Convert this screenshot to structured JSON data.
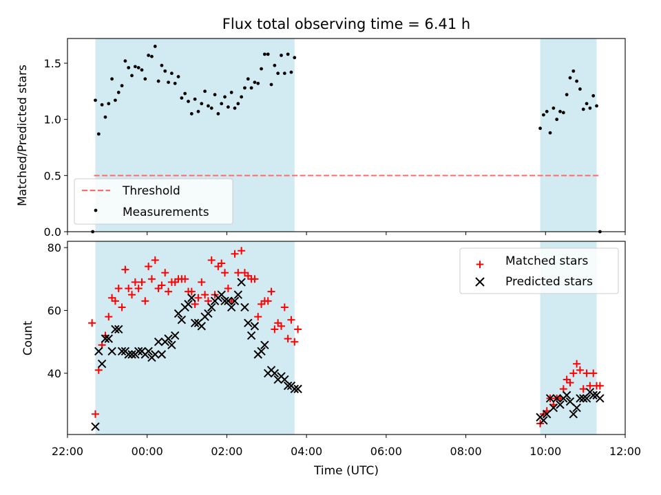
{
  "title": "Flux total observing time = 6.41 h",
  "colors": {
    "span": "#add8e6",
    "threshold": "#ff6b6b",
    "matched": "#ff0000",
    "predicted": "#000000",
    "measurement": "#000000"
  },
  "chart_data": [
    {
      "type": "scatter",
      "ylabel": "Matched/Predicted stars",
      "xlabel": "",
      "xlim": [
        "22:00",
        "12:00"
      ],
      "ylim": [
        0,
        1.72
      ],
      "yticks": [
        "0.0",
        "0.5",
        "1.0",
        "1.5"
      ],
      "shaded_spans": [
        [
          "22:42",
          "03:42"
        ],
        [
          "09:52",
          "11:17"
        ]
      ],
      "threshold": {
        "name": "Threshold",
        "value": 0.5,
        "x_range": [
          "22:40",
          "11:20"
        ]
      },
      "legend": {
        "position": "lower-left",
        "entries": [
          "Threshold",
          "Measurements"
        ]
      },
      "series": [
        {
          "name": "Measurements",
          "points": [
            [
              "22:38",
              0.0
            ],
            [
              "22:42",
              1.17
            ],
            [
              "22:47",
              0.87
            ],
            [
              "22:52",
              1.13
            ],
            [
              "22:57",
              1.02
            ],
            [
              "23:02",
              1.14
            ],
            [
              "23:07",
              1.36
            ],
            [
              "23:12",
              1.17
            ],
            [
              "23:17",
              1.24
            ],
            [
              "23:22",
              1.3
            ],
            [
              "23:27",
              1.52
            ],
            [
              "23:32",
              1.46
            ],
            [
              "23:37",
              1.39
            ],
            [
              "23:42",
              1.47
            ],
            [
              "23:47",
              1.46
            ],
            [
              "23:52",
              1.44
            ],
            [
              "23:57",
              1.36
            ],
            [
              "00:02",
              1.57
            ],
            [
              "00:07",
              1.56
            ],
            [
              "00:12",
              1.65
            ],
            [
              "00:17",
              1.34
            ],
            [
              "00:22",
              1.48
            ],
            [
              "00:27",
              1.43
            ],
            [
              "00:32",
              1.33
            ],
            [
              "00:37",
              1.41
            ],
            [
              "00:42",
              1.32
            ],
            [
              "00:47",
              1.38
            ],
            [
              "00:52",
              1.19
            ],
            [
              "00:57",
              1.23
            ],
            [
              "01:02",
              1.16
            ],
            [
              "01:07",
              1.05
            ],
            [
              "01:12",
              1.18
            ],
            [
              "01:17",
              1.07
            ],
            [
              "01:22",
              1.14
            ],
            [
              "01:27",
              1.25
            ],
            [
              "01:32",
              1.12
            ],
            [
              "01:37",
              1.1
            ],
            [
              "01:42",
              1.22
            ],
            [
              "01:47",
              1.05
            ],
            [
              "01:52",
              1.14
            ],
            [
              "01:57",
              1.2
            ],
            [
              "02:02",
              1.11
            ],
            [
              "02:07",
              1.24
            ],
            [
              "02:12",
              1.1
            ],
            [
              "02:17",
              1.14
            ],
            [
              "02:22",
              1.2
            ],
            [
              "02:27",
              1.28
            ],
            [
              "02:32",
              1.36
            ],
            [
              "02:37",
              1.28
            ],
            [
              "02:42",
              1.33
            ],
            [
              "02:47",
              1.32
            ],
            [
              "02:52",
              1.45
            ],
            [
              "02:57",
              1.58
            ],
            [
              "03:02",
              1.58
            ],
            [
              "03:07",
              1.31
            ],
            [
              "03:12",
              1.48
            ],
            [
              "03:17",
              1.41
            ],
            [
              "03:22",
              1.57
            ],
            [
              "03:27",
              1.41
            ],
            [
              "03:32",
              1.58
            ],
            [
              "03:37",
              1.42
            ],
            [
              "03:42",
              1.55
            ],
            [
              "09:52",
              0.92
            ],
            [
              "09:57",
              1.04
            ],
            [
              "10:02",
              1.07
            ],
            [
              "10:07",
              0.88
            ],
            [
              "10:12",
              1.1
            ],
            [
              "10:17",
              1.0
            ],
            [
              "10:22",
              1.07
            ],
            [
              "10:27",
              1.06
            ],
            [
              "10:32",
              1.22
            ],
            [
              "10:37",
              1.37
            ],
            [
              "10:42",
              1.43
            ],
            [
              "10:47",
              1.34
            ],
            [
              "10:52",
              1.27
            ],
            [
              "10:57",
              1.09
            ],
            [
              "11:02",
              1.14
            ],
            [
              "11:07",
              1.1
            ],
            [
              "11:12",
              1.21
            ],
            [
              "11:17",
              1.12
            ],
            [
              "11:22",
              0.0
            ]
          ]
        }
      ]
    },
    {
      "type": "scatter",
      "ylabel": "Count",
      "xlabel": "Time (UTC)",
      "xlim": [
        "22:00",
        "12:00"
      ],
      "ylim": [
        20.5,
        82
      ],
      "yticks": [
        "40",
        "60",
        "80"
      ],
      "xticks": [
        "22:00",
        "00:00",
        "02:00",
        "04:00",
        "06:00",
        "08:00",
        "10:00",
        "12:00"
      ],
      "shaded_spans": [
        [
          "22:42",
          "03:42"
        ],
        [
          "09:52",
          "11:17"
        ]
      ],
      "legend": {
        "position": "top-right",
        "entries": [
          "Matched stars",
          "Predicted stars"
        ]
      },
      "series": [
        {
          "name": "Matched stars",
          "points": [
            [
              "22:37",
              56
            ],
            [
              "22:42",
              27
            ],
            [
              "22:47",
              41
            ],
            [
              "22:52",
              49
            ],
            [
              "22:57",
              52
            ],
            [
              "23:02",
              58
            ],
            [
              "23:07",
              64
            ],
            [
              "23:12",
              63
            ],
            [
              "23:17",
              67
            ],
            [
              "23:22",
              61
            ],
            [
              "23:27",
              73
            ],
            [
              "23:32",
              67
            ],
            [
              "23:37",
              65
            ],
            [
              "23:42",
              69
            ],
            [
              "23:47",
              67
            ],
            [
              "23:52",
              69
            ],
            [
              "23:57",
              63
            ],
            [
              "00:02",
              74
            ],
            [
              "00:07",
              70
            ],
            [
              "00:12",
              76
            ],
            [
              "00:17",
              67
            ],
            [
              "00:22",
              68
            ],
            [
              "00:27",
              72
            ],
            [
              "00:32",
              66
            ],
            [
              "00:37",
              69
            ],
            [
              "00:42",
              69
            ],
            [
              "00:47",
              70
            ],
            [
              "00:52",
              70
            ],
            [
              "00:57",
              70
            ],
            [
              "01:02",
              66
            ],
            [
              "01:07",
              66
            ],
            [
              "01:12",
              62
            ],
            [
              "01:17",
              64
            ],
            [
              "01:22",
              69
            ],
            [
              "01:27",
              65
            ],
            [
              "01:32",
              63
            ],
            [
              "01:37",
              76
            ],
            [
              "01:42",
              65
            ],
            [
              "01:47",
              74
            ],
            [
              "01:52",
              75
            ],
            [
              "01:57",
              72
            ],
            [
              "02:02",
              67
            ],
            [
              "02:07",
              63
            ],
            [
              "02:12",
              78
            ],
            [
              "02:17",
              72
            ],
            [
              "02:22",
              79
            ],
            [
              "02:27",
              72
            ],
            [
              "02:32",
              71
            ],
            [
              "02:37",
              70
            ],
            [
              "02:42",
              70
            ],
            [
              "02:47",
              58
            ],
            [
              "02:52",
              62
            ],
            [
              "02:57",
              63
            ],
            [
              "03:02",
              63
            ],
            [
              "03:07",
              66
            ],
            [
              "03:12",
              54
            ],
            [
              "03:17",
              56
            ],
            [
              "03:22",
              55
            ],
            [
              "03:27",
              61
            ],
            [
              "03:32",
              51
            ],
            [
              "03:37",
              57
            ],
            [
              "03:42",
              50
            ],
            [
              "03:47",
              54
            ],
            [
              "09:52",
              24
            ],
            [
              "09:57",
              27
            ],
            [
              "10:02",
              28
            ],
            [
              "10:07",
              32
            ],
            [
              "10:12",
              30
            ],
            [
              "10:17",
              32
            ],
            [
              "10:22",
              32
            ],
            [
              "10:27",
              35
            ],
            [
              "10:32",
              38
            ],
            [
              "10:37",
              37
            ],
            [
              "10:42",
              40
            ],
            [
              "10:47",
              43
            ],
            [
              "10:52",
              41
            ],
            [
              "10:57",
              35
            ],
            [
              "11:02",
              40
            ],
            [
              "11:07",
              36
            ],
            [
              "11:12",
              40
            ],
            [
              "11:17",
              36
            ],
            [
              "11:22",
              36
            ]
          ]
        },
        {
          "name": "Predicted stars",
          "points": [
            [
              "22:42",
              23
            ],
            [
              "22:47",
              47
            ],
            [
              "22:52",
              43
            ],
            [
              "22:57",
              51
            ],
            [
              "23:02",
              51
            ],
            [
              "23:07",
              47
            ],
            [
              "23:12",
              54
            ],
            [
              "23:17",
              54
            ],
            [
              "23:22",
              47
            ],
            [
              "23:27",
              47
            ],
            [
              "23:32",
              46
            ],
            [
              "23:37",
              46
            ],
            [
              "23:42",
              46
            ],
            [
              "23:47",
              47
            ],
            [
              "23:52",
              47
            ],
            [
              "23:57",
              46
            ],
            [
              "00:02",
              47
            ],
            [
              "00:07",
              45
            ],
            [
              "00:12",
              46
            ],
            [
              "00:17",
              50
            ],
            [
              "00:22",
              46
            ],
            [
              "00:27",
              50
            ],
            [
              "00:32",
              51
            ],
            [
              "00:37",
              49
            ],
            [
              "00:42",
              52
            ],
            [
              "00:47",
              59
            ],
            [
              "00:52",
              57
            ],
            [
              "00:57",
              61
            ],
            [
              "01:02",
              62
            ],
            [
              "01:07",
              64
            ],
            [
              "01:12",
              56
            ],
            [
              "01:17",
              56
            ],
            [
              "01:22",
              55
            ],
            [
              "01:27",
              58
            ],
            [
              "01:32",
              59
            ],
            [
              "01:37",
              61
            ],
            [
              "01:42",
              63
            ],
            [
              "01:47",
              64
            ],
            [
              "01:52",
              65
            ],
            [
              "01:57",
              63
            ],
            [
              "02:02",
              63
            ],
            [
              "02:07",
              61
            ],
            [
              "02:12",
              63
            ],
            [
              "02:17",
              65
            ],
            [
              "02:22",
              69
            ],
            [
              "02:27",
              61
            ],
            [
              "02:32",
              56
            ],
            [
              "02:37",
              52
            ],
            [
              "02:42",
              55
            ],
            [
              "02:47",
              46
            ],
            [
              "02:52",
              47
            ],
            [
              "02:57",
              49
            ],
            [
              "03:02",
              40
            ],
            [
              "03:07",
              41
            ],
            [
              "03:12",
              40
            ],
            [
              "03:17",
              38
            ],
            [
              "03:22",
              39
            ],
            [
              "03:27",
              38
            ],
            [
              "03:32",
              36
            ],
            [
              "03:37",
              36
            ],
            [
              "03:42",
              35
            ],
            [
              "03:47",
              35
            ],
            [
              "09:52",
              26
            ],
            [
              "09:57",
              25
            ],
            [
              "10:02",
              27
            ],
            [
              "10:07",
              32
            ],
            [
              "10:12",
              29
            ],
            [
              "10:17",
              32
            ],
            [
              "10:22",
              30
            ],
            [
              "10:27",
              32
            ],
            [
              "10:32",
              33
            ],
            [
              "10:37",
              31
            ],
            [
              "10:42",
              27
            ],
            [
              "10:47",
              29
            ],
            [
              "10:52",
              32
            ],
            [
              "10:57",
              32
            ],
            [
              "11:02",
              32
            ],
            [
              "11:07",
              34
            ],
            [
              "11:12",
              33
            ],
            [
              "11:17",
              33
            ],
            [
              "11:22",
              32
            ]
          ]
        }
      ]
    }
  ]
}
